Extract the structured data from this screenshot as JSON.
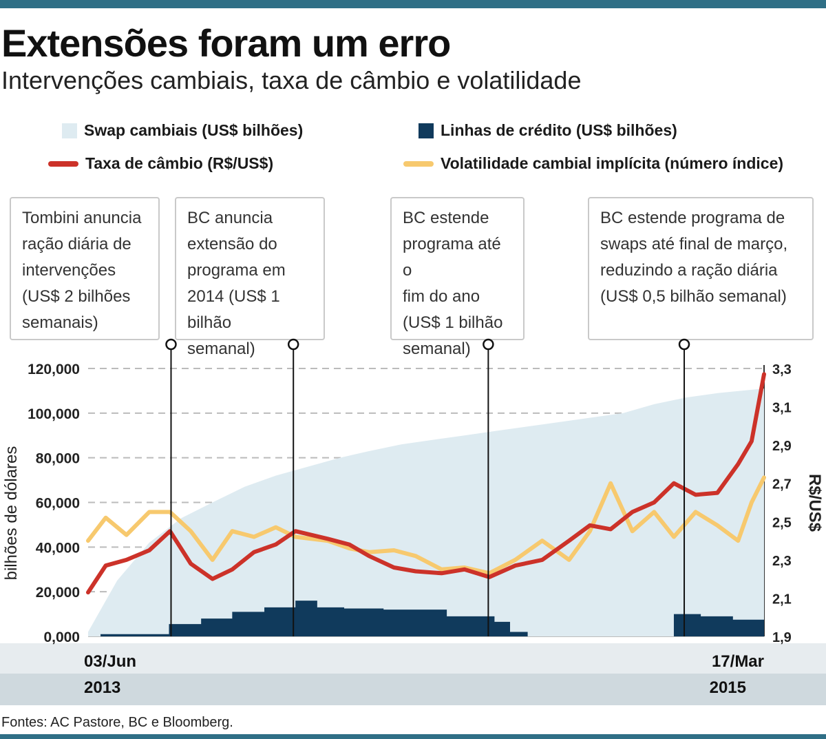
{
  "title": "Extensões foram um erro",
  "subtitle": "Intervenções cambiais, taxa de câmbio e volatilidade",
  "legend": [
    {
      "label": "Swap cambiais (US$ bilhões)",
      "kind": "area",
      "color": "#deebf1"
    },
    {
      "label": "Linhas de crédito (US$ bilhões)",
      "kind": "bar",
      "color": "#103a5c"
    },
    {
      "label": "Taxa de câmbio (R$/US$)",
      "kind": "line",
      "color": "#cc3229"
    },
    {
      "label": "Volatilidade cambial implícita (número índice)",
      "kind": "line",
      "color": "#f7c96e"
    }
  ],
  "annotations": [
    {
      "text": "Tombini anuncia\nração diária de\nintervenções\n(US$ 2 bilhões\nsemanais)",
      "date": "2013-08-22"
    },
    {
      "text": "BC anuncia\nextensão do\nprograma em\n2014 (US$ 1 bilhão\nsemanal)",
      "date": "2013-12-18"
    },
    {
      "text": "BC estende\nprograma até o\nfim do ano\n(US$ 1 bilhão\nsemanal)",
      "date": "2014-06-24"
    },
    {
      "text": "BC  estende programa de\nswaps até final de março,\nreduzindo a ração diária\n(US$ 0,5 bilhão semanal)",
      "date": "2014-12-30"
    }
  ],
  "footer": "Fontes: AC Pastore, BC e Bloomberg.",
  "chart_data": {
    "type": "line",
    "x_start": "2013-06-03",
    "x_end": "2015-03-17",
    "x_labels": [
      {
        "day": "03/Jun",
        "year": "2013"
      },
      {
        "day": "17/Mar",
        "year": "2015"
      }
    ],
    "ylabel_left": "bilhões de dólares",
    "ylabel_right": "R$/US$",
    "yticks_left": [
      "0,000",
      "20,000",
      "40,000",
      "60,000",
      "80,000",
      "100,000",
      "120,000"
    ],
    "yticks_right": [
      "1,9",
      "2,1",
      "2,3",
      "2,5",
      "2,7",
      "2,9",
      "3,1",
      "3,3"
    ],
    "ylim_left": [
      0,
      120000
    ],
    "ylim_right": [
      1.9,
      3.3
    ],
    "grid": "horizontal-dashed",
    "series": [
      {
        "name": "Swap cambiais (US$ bilhões)",
        "axis": "left",
        "kind": "area",
        "color": "#deebf1",
        "x": [
          "2013-06-03",
          "2013-07-01",
          "2013-08-01",
          "2013-09-01",
          "2013-10-01",
          "2013-11-01",
          "2013-12-01",
          "2014-01-01",
          "2014-02-01",
          "2014-03-01",
          "2014-04-01",
          "2014-05-01",
          "2014-06-01",
          "2014-07-01",
          "2014-08-01",
          "2014-09-01",
          "2014-10-01",
          "2014-11-01",
          "2014-12-01",
          "2015-01-01",
          "2015-02-01",
          "2015-03-17"
        ],
        "values": [
          2000,
          25000,
          42000,
          53000,
          60000,
          67000,
          72000,
          76000,
          80000,
          83000,
          86000,
          88000,
          90000,
          92000,
          94000,
          96000,
          98000,
          100000,
          104000,
          107000,
          109000,
          111000
        ]
      },
      {
        "name": "Linhas de crédito (US$ bilhões)",
        "axis": "left",
        "kind": "step-area",
        "color": "#103a5c",
        "x": [
          "2013-06-03",
          "2013-06-15",
          "2013-08-20",
          "2013-09-20",
          "2013-10-20",
          "2013-11-20",
          "2013-12-20",
          "2014-01-10",
          "2014-02-05",
          "2014-03-15",
          "2014-05-15",
          "2014-06-30",
          "2014-07-15",
          "2014-08-01",
          "2014-12-01",
          "2014-12-20",
          "2015-01-15",
          "2015-02-15",
          "2015-03-17"
        ],
        "values": [
          0,
          1000,
          5500,
          8000,
          11000,
          13000,
          16000,
          13000,
          12500,
          12000,
          9000,
          6500,
          2000,
          0,
          0,
          10000,
          9000,
          7500,
          7000
        ]
      },
      {
        "name": "Taxa de câmbio (R$/US$)",
        "axis": "right",
        "kind": "line",
        "color": "#cc3229",
        "x": [
          "2013-06-03",
          "2013-06-20",
          "2013-07-10",
          "2013-08-01",
          "2013-08-21",
          "2013-09-10",
          "2013-10-01",
          "2013-10-20",
          "2013-11-10",
          "2013-12-01",
          "2013-12-20",
          "2014-01-20",
          "2014-02-10",
          "2014-03-01",
          "2014-03-25",
          "2014-04-15",
          "2014-05-10",
          "2014-06-01",
          "2014-06-25",
          "2014-07-20",
          "2014-08-15",
          "2014-09-10",
          "2014-09-30",
          "2014-10-20",
          "2014-11-10",
          "2014-12-01",
          "2014-12-20",
          "2015-01-10",
          "2015-01-31",
          "2015-02-20",
          "2015-03-05",
          "2015-03-17"
        ],
        "values": [
          2.13,
          2.27,
          2.3,
          2.35,
          2.45,
          2.28,
          2.2,
          2.25,
          2.34,
          2.38,
          2.45,
          2.41,
          2.38,
          2.32,
          2.26,
          2.24,
          2.23,
          2.25,
          2.21,
          2.27,
          2.3,
          2.4,
          2.48,
          2.46,
          2.55,
          2.6,
          2.7,
          2.64,
          2.65,
          2.8,
          2.92,
          3.27
        ]
      },
      {
        "name": "Volatilidade cambial implícita (número índice)",
        "axis": "right",
        "kind": "line",
        "color": "#f7c96e",
        "x": [
          "2013-06-03",
          "2013-06-20",
          "2013-07-10",
          "2013-08-01",
          "2013-08-21",
          "2013-09-10",
          "2013-10-01",
          "2013-10-20",
          "2013-11-10",
          "2013-12-01",
          "2013-12-20",
          "2014-01-20",
          "2014-02-10",
          "2014-03-01",
          "2014-03-25",
          "2014-04-15",
          "2014-05-10",
          "2014-06-01",
          "2014-06-25",
          "2014-07-20",
          "2014-08-15",
          "2014-09-10",
          "2014-09-30",
          "2014-10-20",
          "2014-11-10",
          "2014-12-01",
          "2014-12-20",
          "2015-01-10",
          "2015-01-31",
          "2015-02-20",
          "2015-03-05",
          "2015-03-17"
        ],
        "values": [
          2.4,
          2.52,
          2.43,
          2.55,
          2.55,
          2.45,
          2.3,
          2.45,
          2.42,
          2.47,
          2.42,
          2.4,
          2.36,
          2.34,
          2.35,
          2.32,
          2.25,
          2.26,
          2.23,
          2.3,
          2.4,
          2.3,
          2.45,
          2.7,
          2.45,
          2.55,
          2.42,
          2.55,
          2.48,
          2.4,
          2.6,
          2.73
        ]
      }
    ]
  }
}
